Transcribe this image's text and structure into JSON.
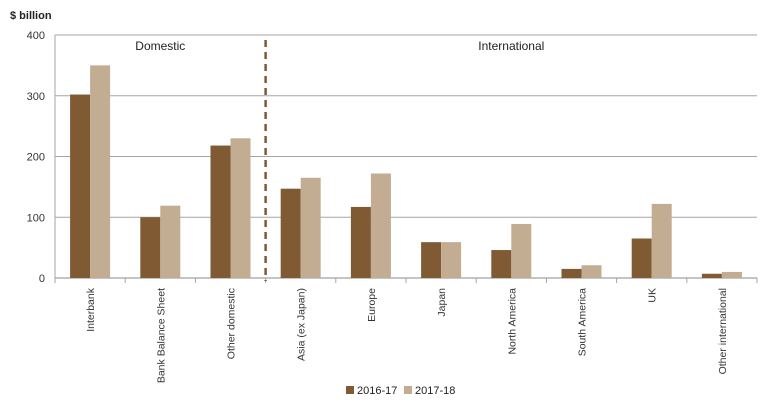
{
  "chart_data": {
    "type": "bar",
    "ylabel": "$ billion",
    "ylim": [
      0,
      400
    ],
    "yticks": [
      0,
      100,
      200,
      300,
      400
    ],
    "grid": true,
    "legend_position": "bottom",
    "categories": [
      "Interbank",
      "Bank Balance Sheet",
      "Other domestic",
      "Asia (ex Japan)",
      "Europe",
      "Japan",
      "North America",
      "South America",
      "UK",
      "Other international"
    ],
    "series": [
      {
        "name": "2016-17",
        "color": "#7f5a32",
        "values": [
          302,
          100,
          218,
          147,
          117,
          59,
          46,
          15,
          65,
          7
        ]
      },
      {
        "name": "2017-18",
        "color": "#c2ac92",
        "values": [
          350,
          119,
          230,
          165,
          172,
          59,
          89,
          21,
          122,
          10
        ]
      }
    ],
    "groups": [
      {
        "label": "Domestic",
        "from": 0,
        "to": 2
      },
      {
        "label": "International",
        "from": 3,
        "to": 9
      }
    ],
    "divider_after_index": 2,
    "divider_color": "#7f5a32"
  }
}
